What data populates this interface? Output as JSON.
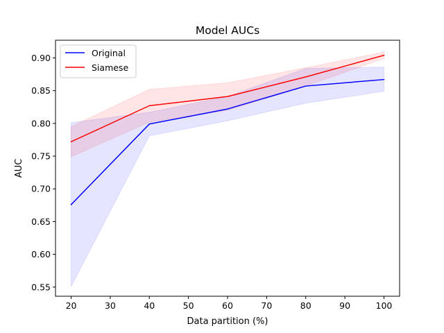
{
  "chart_data": {
    "type": "line",
    "title": "Model AUCs",
    "xlabel": "Data partition (%)",
    "ylabel": "AUC",
    "x": [
      20,
      40,
      60,
      80,
      100
    ],
    "xticks": [
      20,
      30,
      40,
      50,
      60,
      70,
      80,
      90,
      100
    ],
    "yticks": [
      0.55,
      0.6,
      0.65,
      0.7,
      0.75,
      0.8,
      0.85,
      0.9
    ],
    "ytick_labels": [
      "0.55",
      "0.60",
      "0.65",
      "0.70",
      "0.75",
      "0.80",
      "0.85",
      "0.90"
    ],
    "xlim": [
      16,
      104
    ],
    "ylim": [
      0.536,
      0.927
    ],
    "grid": false,
    "legend_position": "top-left",
    "series": [
      {
        "name": "Original",
        "color": "#0000ff",
        "values": [
          0.676,
          0.799,
          0.822,
          0.857,
          0.867
        ],
        "lower": [
          0.551,
          0.781,
          0.804,
          0.831,
          0.849
        ],
        "upper": [
          0.801,
          0.817,
          0.841,
          0.884,
          0.886
        ]
      },
      {
        "name": "Siamese",
        "color": "#ff0000",
        "values": [
          0.772,
          0.827,
          0.841,
          0.871,
          0.904
        ],
        "lower": [
          0.749,
          0.802,
          0.82,
          0.857,
          0.899
        ],
        "upper": [
          0.795,
          0.852,
          0.862,
          0.885,
          0.909
        ]
      }
    ]
  }
}
